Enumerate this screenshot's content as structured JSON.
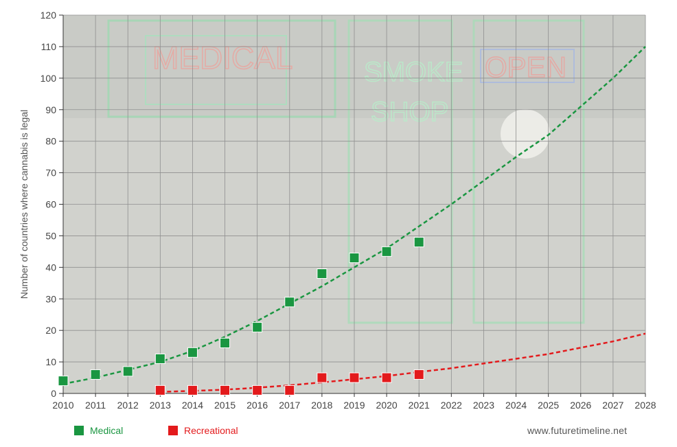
{
  "chart_data": {
    "type": "scatter",
    "title": "",
    "xlabel": "",
    "ylabel": "Number of countries where cannabis is legal",
    "x_ticks": [
      2010,
      2011,
      2012,
      2013,
      2014,
      2015,
      2016,
      2017,
      2018,
      2019,
      2020,
      2021,
      2022,
      2023,
      2024,
      2025,
      2026,
      2027,
      2028
    ],
    "y_ticks": [
      0,
      10,
      20,
      30,
      40,
      50,
      60,
      70,
      80,
      90,
      100,
      110,
      120
    ],
    "xlim": [
      2010,
      2028
    ],
    "ylim": [
      0,
      120
    ],
    "grid": true,
    "legend_position": "bottom-left",
    "background": "photo of storefront with neon signs MEDICAL, SMOKE SHOP, OPEN (faded)",
    "series": [
      {
        "name": "Medical",
        "color": "#1a9641",
        "points": [
          [
            2010,
            4
          ],
          [
            2011,
            6
          ],
          [
            2012,
            7
          ],
          [
            2013,
            11
          ],
          [
            2014,
            13
          ],
          [
            2015,
            16
          ],
          [
            2016,
            21
          ],
          [
            2017,
            29
          ],
          [
            2018,
            38
          ],
          [
            2019,
            43
          ],
          [
            2020,
            45
          ],
          [
            2021,
            48
          ]
        ],
        "trend": [
          [
            2010,
            3
          ],
          [
            2011,
            5
          ],
          [
            2012,
            7.5
          ],
          [
            2013,
            10
          ],
          [
            2014,
            13.5
          ],
          [
            2015,
            18
          ],
          [
            2016,
            23
          ],
          [
            2017,
            28.5
          ],
          [
            2018,
            34
          ],
          [
            2019,
            40
          ],
          [
            2020,
            46
          ],
          [
            2021,
            53
          ],
          [
            2022,
            60
          ],
          [
            2023,
            67.5
          ],
          [
            2024,
            75
          ],
          [
            2025,
            82
          ],
          [
            2026,
            91
          ],
          [
            2027,
            100
          ],
          [
            2028,
            110
          ]
        ]
      },
      {
        "name": "Recreational",
        "color": "#e31a1c",
        "points": [
          [
            2013,
            1
          ],
          [
            2014,
            1
          ],
          [
            2015,
            1
          ],
          [
            2016,
            1
          ],
          [
            2017,
            1
          ],
          [
            2018,
            5
          ],
          [
            2019,
            5
          ],
          [
            2020,
            5
          ],
          [
            2021,
            6
          ]
        ],
        "trend": [
          [
            2013,
            0.5
          ],
          [
            2014,
            0.8
          ],
          [
            2015,
            1.2
          ],
          [
            2016,
            1.8
          ],
          [
            2017,
            2.6
          ],
          [
            2018,
            3.5
          ],
          [
            2019,
            4.5
          ],
          [
            2020,
            5.5
          ],
          [
            2021,
            6.8
          ],
          [
            2022,
            8
          ],
          [
            2023,
            9.5
          ],
          [
            2024,
            11
          ],
          [
            2025,
            12.5
          ],
          [
            2026,
            14.5
          ],
          [
            2027,
            16.5
          ],
          [
            2028,
            19
          ]
        ]
      }
    ]
  },
  "legend": {
    "medical": "Medical",
    "recreational": "Recreational"
  },
  "credit": "www.futuretimeline.net"
}
